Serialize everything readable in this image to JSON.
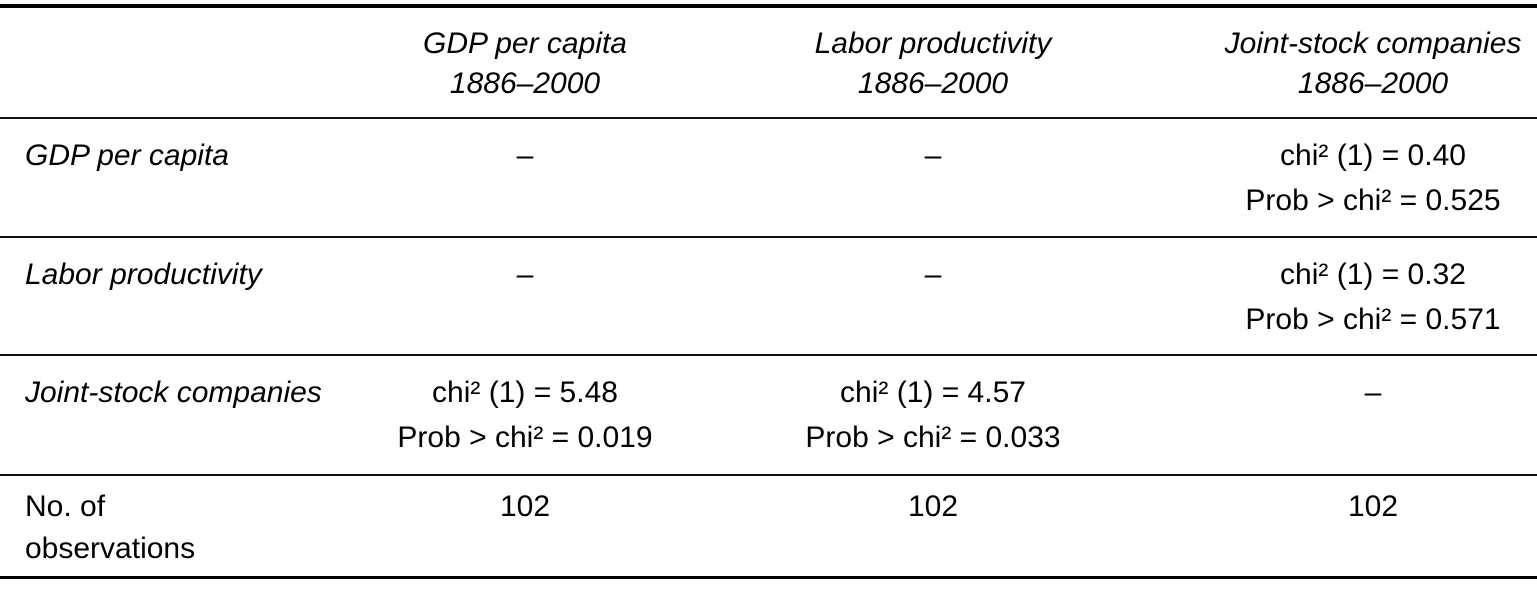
{
  "table": {
    "header": {
      "columns": [
        {
          "title": "GDP per capita",
          "period": "1886–2000"
        },
        {
          "title": "Labor productivity",
          "period": "1886–2000"
        },
        {
          "title": "Joint-stock companies",
          "period": "1886–2000"
        }
      ]
    },
    "rows": [
      {
        "label": "GDP per capita",
        "cells": [
          {
            "kind": "dash",
            "text": "–"
          },
          {
            "kind": "dash",
            "text": "–"
          },
          {
            "kind": "stat",
            "chi": "chi² (1) = 0.40",
            "prob": "Prob > chi² = 0.525"
          }
        ]
      },
      {
        "label": "Labor productivity",
        "cells": [
          {
            "kind": "dash",
            "text": "–"
          },
          {
            "kind": "dash",
            "text": "–"
          },
          {
            "kind": "stat",
            "chi": "chi² (1) = 0.32",
            "prob": "Prob > chi² = 0.571"
          }
        ]
      },
      {
        "label": "Joint-stock companies",
        "cells": [
          {
            "kind": "stat",
            "chi": "chi² (1) = 5.48",
            "prob": "Prob > chi² = 0.019"
          },
          {
            "kind": "stat",
            "chi": "chi² (1) = 4.57",
            "prob": "Prob > chi² = 0.033"
          },
          {
            "kind": "dash",
            "text": "–"
          }
        ]
      },
      {
        "label": "No. of observations",
        "cells": [
          {
            "kind": "value",
            "text": "102"
          },
          {
            "kind": "value",
            "text": "102"
          },
          {
            "kind": "value",
            "text": "102"
          }
        ]
      }
    ]
  }
}
